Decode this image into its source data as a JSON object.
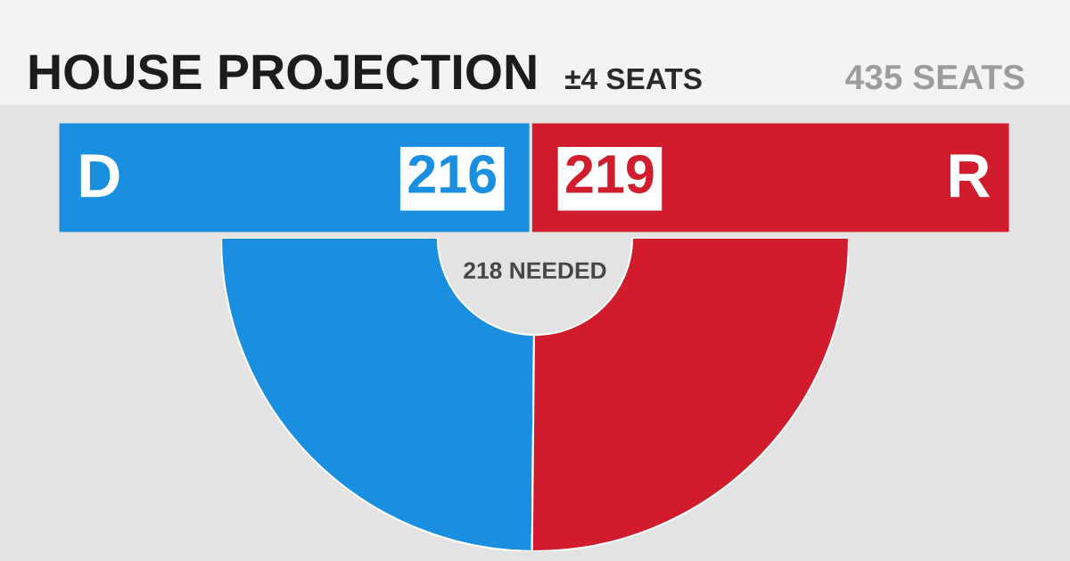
{
  "chart_data": [
    {
      "type": "bar",
      "orientation": "horizontal",
      "stacked": true,
      "title": "HOUSE PROJECTION",
      "categories": [
        null
      ],
      "series": [
        {
          "name": "D",
          "color": "#1a8fdf",
          "values": [
            216
          ]
        },
        {
          "name": "R",
          "color": "#d01c2c",
          "values": [
            219
          ]
        }
      ],
      "data_labels": true,
      "annotations": [
        "±4 SEATS",
        "435 SEATS"
      ]
    },
    {
      "type": "donut",
      "categories": [
        null,
        null
      ],
      "values": [
        49.7,
        50.3
      ],
      "colors": [
        "#1a8fdf",
        "#d01c2c"
      ],
      "annotations": [
        "218 NEEDED"
      ]
    }
  ]
}
